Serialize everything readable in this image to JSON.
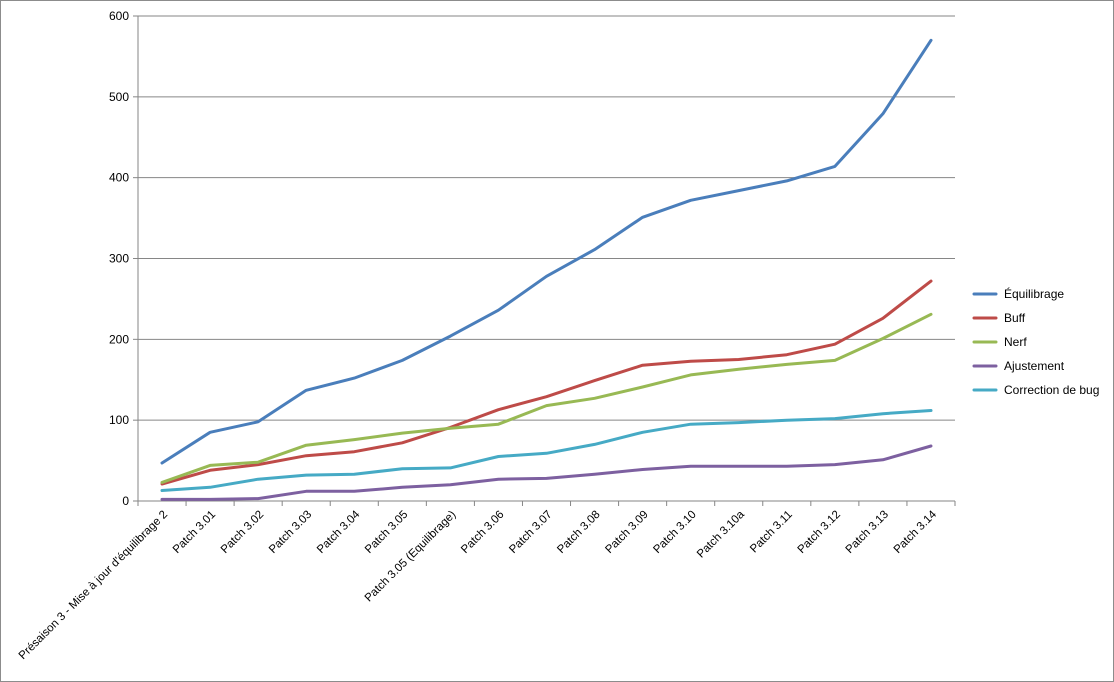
{
  "chart_data": {
    "type": "line",
    "title": "",
    "xlabel": "",
    "ylabel": "",
    "ylim": [
      0,
      600
    ],
    "yticks": [
      0,
      100,
      200,
      300,
      400,
      500,
      600
    ],
    "grid": "horizontal",
    "legend_position": "right",
    "categories": [
      "Présaison 3 - Mise à jour d'équilibrage 2",
      "Patch 3.01",
      "Patch 3.02",
      "Patch 3.03",
      "Patch 3.04",
      "Patch 3.05",
      "Patch 3.05 (Equilibrage)",
      "Patch 3.06",
      "Patch 3.07",
      "Patch 3.08",
      "Patch 3.09",
      "Patch 3.10",
      "Patch 3.10a",
      "Patch 3.11",
      "Patch 3.12",
      "Patch 3.13",
      "Patch 3.14"
    ],
    "series": [
      {
        "name": "Équilibrage",
        "color": "#4a7ebb",
        "values": [
          47,
          85,
          98,
          137,
          152,
          174,
          204,
          236,
          278,
          311,
          351,
          372,
          384,
          396,
          414,
          479,
          570
        ]
      },
      {
        "name": "Buff",
        "color": "#be4b48",
        "values": [
          21,
          38,
          45,
          56,
          61,
          72,
          91,
          113,
          129,
          149,
          168,
          173,
          175,
          181,
          194,
          226,
          272
        ]
      },
      {
        "name": "Nerf",
        "color": "#98b954",
        "values": [
          23,
          44,
          48,
          69,
          76,
          84,
          90,
          95,
          118,
          127,
          141,
          156,
          163,
          169,
          174,
          201,
          231
        ]
      },
      {
        "name": "Ajustement",
        "color": "#7d60a0",
        "values": [
          2,
          2,
          3,
          12,
          12,
          17,
          20,
          27,
          28,
          33,
          39,
          43,
          43,
          43,
          45,
          51,
          68
        ]
      },
      {
        "name": "Correction de bug",
        "color": "#46aac5",
        "values": [
          13,
          17,
          27,
          32,
          33,
          40,
          41,
          55,
          59,
          70,
          85,
          95,
          97,
          100,
          102,
          108,
          112
        ]
      }
    ]
  }
}
